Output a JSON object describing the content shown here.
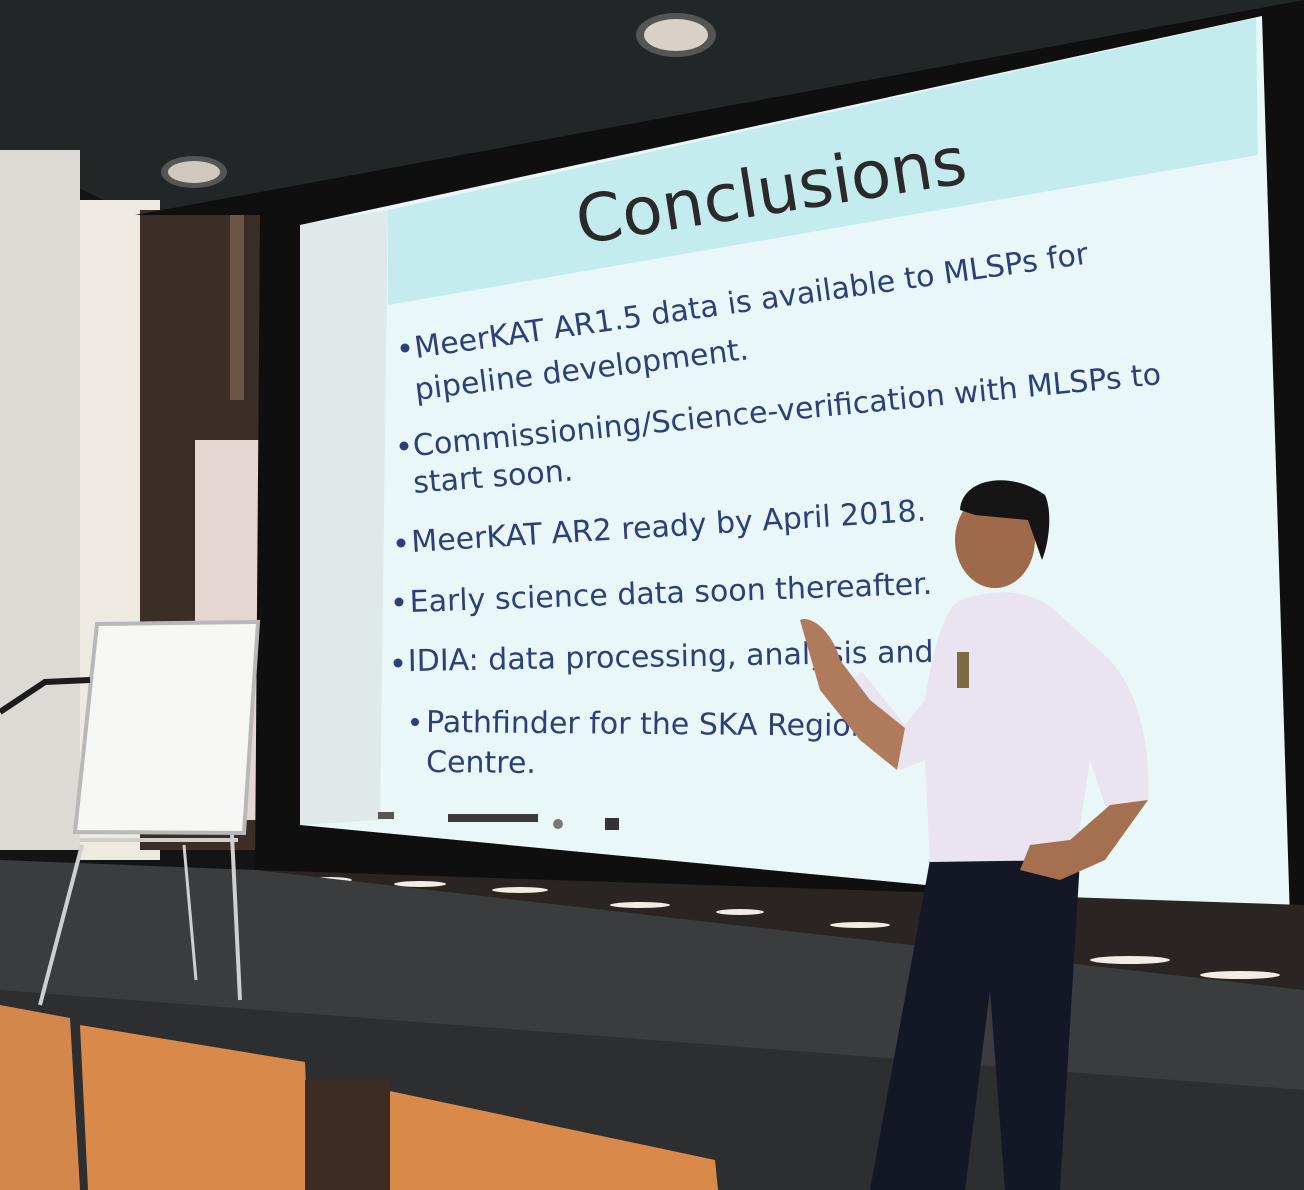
{
  "slide": {
    "title": "Conclusions",
    "bullets": [
      {
        "lines": [
          "MeerKAT AR1.5 data is available to MLSPs for",
          "pipeline development."
        ]
      },
      {
        "lines": [
          "Commissioning/Science-verification with MLSPs to",
          "start soon."
        ]
      },
      {
        "lines": [
          "MeerKAT AR2 ready by April 2018."
        ]
      },
      {
        "lines": [
          "Early science data soon thereafter."
        ]
      },
      {
        "lines": [
          "IDIA: data processing, analysis and cc"
        ]
      },
      {
        "lines": [
          "Pathfinder for the SKA Regional",
          "Centre."
        ]
      }
    ],
    "footer_logos": [
      "ska-logo",
      "university-of-cape-town-logo",
      "partner-seal-logo",
      "idia-logo"
    ]
  },
  "colors": {
    "slide_bg": "#e8f6f8",
    "title_band": "#c8eef1",
    "title_text": "#2a2a2a",
    "bullet_text": "#2c3f78",
    "room_dark": "#1b1b1b",
    "seat_orange": "#d98a4a"
  }
}
